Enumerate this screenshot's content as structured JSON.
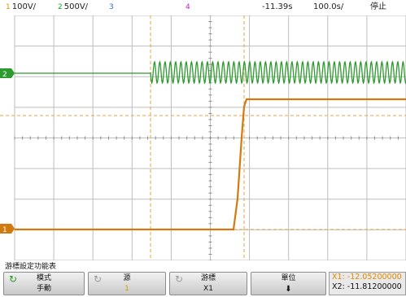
{
  "header": {
    "ch1": {
      "num": "1",
      "scale": "100V/",
      "color": "#d49a00"
    },
    "ch2": {
      "num": "2",
      "scale": "500V/",
      "color": "#22a022"
    },
    "ch3": {
      "num": "3",
      "color": "#3f5fe0"
    },
    "ch4": {
      "num": "4",
      "color": "#d020c0"
    },
    "trigger_time": "-11.39s",
    "timebase": "100.0s/",
    "run_state": "停止"
  },
  "waveform": {
    "background": "#ffffff",
    "grid_color": "#bdbdbd",
    "ch1_color": "#d07a10",
    "ch2_color": "#2c9a2c",
    "cursor_color": "#f0a040",
    "ch1_marker": "1",
    "ch2_marker": "2"
  },
  "menu": {
    "title": "游標設定功能表",
    "buttons": [
      {
        "label": "模式",
        "value": "手動",
        "icon": "rotate-icon"
      },
      {
        "label": "源",
        "value": "1",
        "icon": "rotate-icon"
      },
      {
        "label": "游標",
        "value": "X1",
        "icon": "rotate-icon"
      },
      {
        "label": "單位",
        "value": "",
        "icon": "down-arrow-icon"
      }
    ],
    "readout": {
      "x1": "X1: -12.05200000",
      "x2": "X2: -11.81200000",
      "x1_color": "#e08a00",
      "x2_color": "#111111"
    }
  }
}
